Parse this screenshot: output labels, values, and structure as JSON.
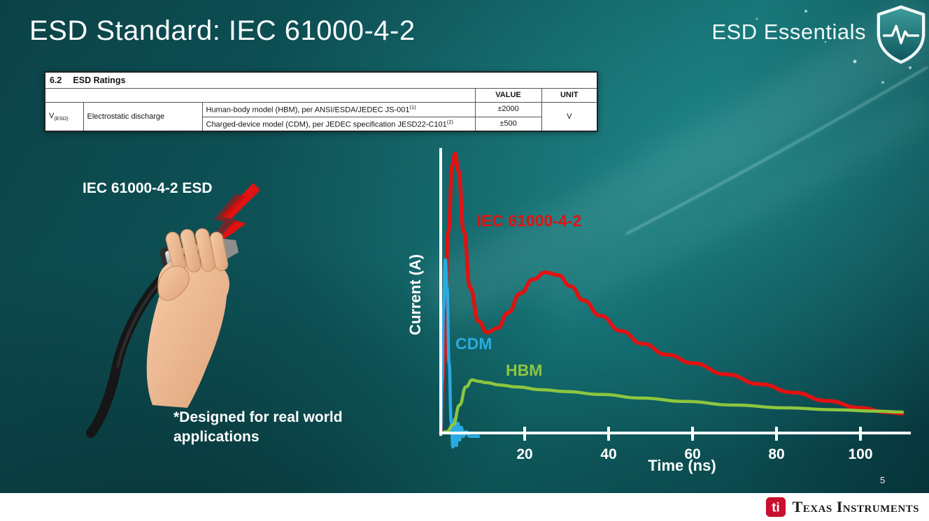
{
  "slide": {
    "title": "ESD Standard: IEC 61000-4-2",
    "brand": "ESD Essentials",
    "page_number": "5",
    "footer_text": "Texas Instruments",
    "footer_monogram": "ti",
    "left": {
      "diagram_label": "IEC 61000-4-2 ESD",
      "note_line1": "*Designed for real world",
      "note_line2": "applications"
    },
    "table": {
      "section": "6.2",
      "section_title": "ESD Ratings",
      "col_value": "VALUE",
      "col_unit": "UNIT",
      "row_symbol": "V",
      "row_symbol_sub": "(ESD)",
      "row_param": "Electrostatic discharge",
      "rows": [
        {
          "desc": "Human-body model (HBM), per ANSI/ESDA/JEDEC JS-001",
          "sup": "(1)",
          "value": "±2000"
        },
        {
          "desc": "Charged-device model (CDM), per JEDEC specification JESD22-C101",
          "sup": "(2)",
          "value": "±500"
        }
      ],
      "unit": "V"
    }
  },
  "chart_data": {
    "type": "line",
    "title": "",
    "xlabel": "Time (ns)",
    "ylabel": "Current (A)",
    "xlim": [
      0,
      110
    ],
    "ylim": [
      0,
      1
    ],
    "x_ticks": [
      20,
      40,
      60,
      80,
      100
    ],
    "y_ticks": [],
    "grid": false,
    "legend_position": "on-curve",
    "series": [
      {
        "name": "IEC 61000-4-2",
        "color": "#e01212",
        "label_at": [
          8.6,
          0.74
        ],
        "points": [
          [
            0,
            0
          ],
          [
            0.8,
            0.25
          ],
          [
            1.8,
            0.72
          ],
          [
            2.8,
            0.96
          ],
          [
            3.4,
            1.0
          ],
          [
            4.2,
            0.94
          ],
          [
            5.5,
            0.72
          ],
          [
            7,
            0.52
          ],
          [
            9,
            0.4
          ],
          [
            11,
            0.36
          ],
          [
            13.5,
            0.375
          ],
          [
            16,
            0.43
          ],
          [
            19,
            0.5
          ],
          [
            22,
            0.55
          ],
          [
            25,
            0.575
          ],
          [
            28,
            0.565
          ],
          [
            31,
            0.525
          ],
          [
            34,
            0.475
          ],
          [
            38,
            0.42
          ],
          [
            43,
            0.365
          ],
          [
            48,
            0.32
          ],
          [
            54,
            0.28
          ],
          [
            60,
            0.25
          ],
          [
            68,
            0.21
          ],
          [
            76,
            0.175
          ],
          [
            84,
            0.145
          ],
          [
            92,
            0.115
          ],
          [
            100,
            0.09
          ],
          [
            106,
            0.075
          ],
          [
            110,
            0.07
          ]
        ]
      },
      {
        "name": "CDM",
        "color": "#29abe2",
        "label_at": [
          3.5,
          0.3
        ],
        "points": [
          [
            0,
            0
          ],
          [
            0.3,
            0.18
          ],
          [
            0.7,
            0.45
          ],
          [
            1.1,
            0.62
          ],
          [
            1.5,
            0.52
          ],
          [
            2,
            0.25
          ],
          [
            2.5,
            0.04
          ],
          [
            2.9,
            -0.05
          ],
          [
            3.3,
            0.05
          ],
          [
            3.7,
            -0.045
          ],
          [
            4.1,
            0.035
          ],
          [
            4.5,
            -0.025
          ],
          [
            4.9,
            0.02
          ],
          [
            5.4,
            -0.012
          ],
          [
            6,
            0.005
          ],
          [
            7,
            -0.012
          ],
          [
            9,
            -0.012
          ]
        ]
      },
      {
        "name": "HBM",
        "color": "#8dc63f",
        "label_at": [
          15.5,
          0.205
        ],
        "points": [
          [
            0,
            0
          ],
          [
            1.5,
            0.005
          ],
          [
            3,
            0.03
          ],
          [
            4.5,
            0.1
          ],
          [
            6,
            0.165
          ],
          [
            7.5,
            0.19
          ],
          [
            9,
            0.185
          ],
          [
            11,
            0.18
          ],
          [
            14,
            0.172
          ],
          [
            18,
            0.165
          ],
          [
            24,
            0.155
          ],
          [
            30,
            0.148
          ],
          [
            38,
            0.138
          ],
          [
            48,
            0.125
          ],
          [
            58,
            0.113
          ],
          [
            70,
            0.1
          ],
          [
            82,
            0.09
          ],
          [
            94,
            0.083
          ],
          [
            104,
            0.078
          ],
          [
            110,
            0.075
          ]
        ]
      }
    ]
  }
}
